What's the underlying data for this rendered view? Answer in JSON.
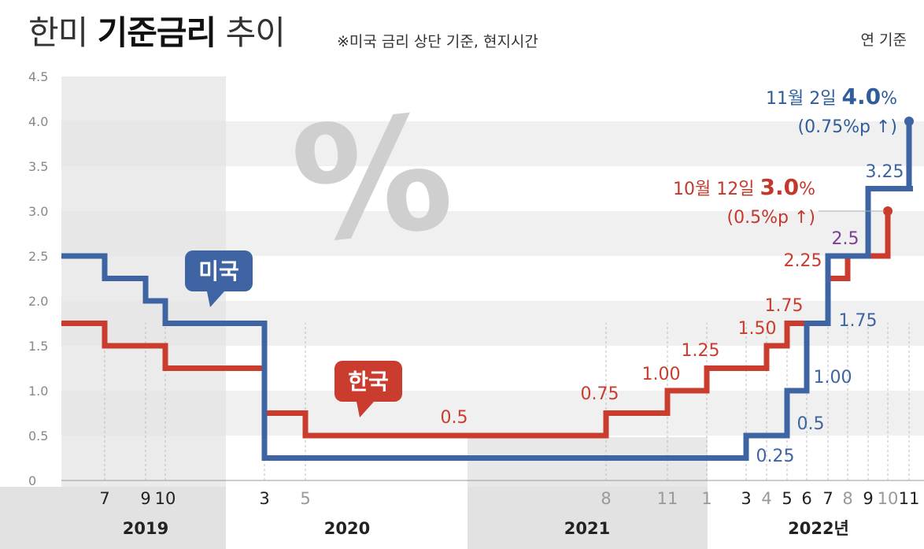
{
  "header": {
    "title_part1": "한미",
    "title_part2": "기준금리",
    "title_part3": "추이",
    "note": "※미국 금리 상단 기준, 현지시간",
    "unit_note": "연 기준"
  },
  "colors": {
    "us": "#3e64a3",
    "kr": "#c93c2e",
    "grid_band": "#f0f0f0",
    "year_band": "#e4e4e4",
    "us_label_dark": "#2f5d99",
    "kr_label_dark": "#c3382c",
    "purple": "#7a3f95"
  },
  "chart_data": {
    "type": "line",
    "step": true,
    "title": "한미 기준금리 추이",
    "ylim": [
      0,
      4.5
    ],
    "yticks": [
      "0",
      "0.5",
      "1.0",
      "1.5",
      "2.0",
      "2.5",
      "3.0",
      "3.5",
      "4.0",
      "4.5"
    ],
    "years": [
      "2019",
      "2020",
      "2021",
      "2022년"
    ],
    "month_ticks": [
      {
        "label": "7",
        "year": 2019,
        "month": 7,
        "muted": false
      },
      {
        "label": "9",
        "year": 2019,
        "month": 9,
        "muted": false
      },
      {
        "label": "10",
        "year": 2019,
        "month": 10,
        "muted": false
      },
      {
        "label": "3",
        "year": 2020,
        "month": 3,
        "muted": false
      },
      {
        "label": "5",
        "year": 2020,
        "month": 5,
        "muted": true
      },
      {
        "label": "8",
        "year": 2021,
        "month": 8,
        "muted": true
      },
      {
        "label": "11",
        "year": 2021,
        "month": 11,
        "muted": true
      },
      {
        "label": "1",
        "year": 2022,
        "month": 1,
        "muted": true
      },
      {
        "label": "3",
        "year": 2022,
        "month": 3,
        "muted": false
      },
      {
        "label": "4",
        "year": 2022,
        "month": 4,
        "muted": true
      },
      {
        "label": "5",
        "year": 2022,
        "month": 5,
        "muted": false
      },
      {
        "label": "6",
        "year": 2022,
        "month": 6,
        "muted": false
      },
      {
        "label": "7",
        "year": 2022,
        "month": 7,
        "muted": false
      },
      {
        "label": "8",
        "year": 2022,
        "month": 8,
        "muted": true
      },
      {
        "label": "9",
        "year": 2022,
        "month": 9,
        "muted": false
      },
      {
        "label": "10",
        "year": 2022,
        "month": 10,
        "muted": true
      },
      {
        "label": "11",
        "year": 2022,
        "month": 11,
        "muted": false
      }
    ],
    "series": [
      {
        "name": "미국",
        "points": [
          [
            "2019-01",
            2.5
          ],
          [
            "2019-07",
            2.25
          ],
          [
            "2019-09",
            2.0
          ],
          [
            "2019-10",
            1.75
          ],
          [
            "2020-03a",
            1.25
          ],
          [
            "2020-03b",
            0.25
          ],
          [
            "2022-03",
            0.5
          ],
          [
            "2022-05",
            1.0
          ],
          [
            "2022-06",
            1.75
          ],
          [
            "2022-07",
            2.5
          ],
          [
            "2022-09",
            3.25
          ],
          [
            "2022-11",
            4.0
          ]
        ]
      },
      {
        "name": "한국",
        "points": [
          [
            "2019-01",
            1.75
          ],
          [
            "2019-07",
            1.5
          ],
          [
            "2019-10",
            1.25
          ],
          [
            "2020-03",
            0.75
          ],
          [
            "2020-05",
            0.5
          ],
          [
            "2021-08",
            0.75
          ],
          [
            "2021-11",
            1.0
          ],
          [
            "2022-01",
            1.25
          ],
          [
            "2022-04",
            1.5
          ],
          [
            "2022-05",
            1.75
          ],
          [
            "2022-07",
            2.25
          ],
          [
            "2022-08",
            2.5
          ],
          [
            "2022-10",
            3.0
          ]
        ]
      }
    ],
    "us_label": "미국",
    "kr_label": "한국",
    "kr_labels": [
      {
        "text": "0.75",
        "month": "2021-08",
        "value": 0.75
      },
      {
        "text": "1.00",
        "month": "2021-11",
        "value": 1.0
      },
      {
        "text": "1.25",
        "month": "2022-01",
        "value": 1.25
      },
      {
        "text": "1.50",
        "month": "2022-04",
        "value": 1.5
      },
      {
        "text": "1.75",
        "month": "2022-05",
        "value": 1.75
      },
      {
        "text": "2.25",
        "month": "2022-07",
        "value": 2.25
      },
      {
        "text": "0.5",
        "month": "2020-12",
        "value": 0.5
      }
    ],
    "us_labels": [
      {
        "text": "0.25",
        "value": 0.25
      },
      {
        "text": "0.5",
        "value": 0.5
      },
      {
        "text": "1.00",
        "value": 1.0
      },
      {
        "text": "1.75",
        "value": 1.75
      },
      {
        "text": "2.5",
        "value": 2.5
      },
      {
        "text": "3.25",
        "value": 3.25
      }
    ],
    "us_annotation": {
      "date": "11월 2일",
      "value": "4.0",
      "pct": "%",
      "change": "(0.75%p ↑)"
    },
    "kr_annotation": {
      "date": "10월 12일",
      "value": "3.0",
      "pct": "%",
      "change": "(0.5%p ↑)"
    },
    "percent_symbol": "%"
  }
}
